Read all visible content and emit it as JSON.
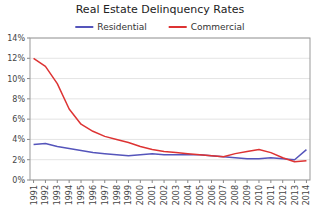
{
  "chart_data": {
    "type": "line",
    "title": "Real Estate Delinquency Rates",
    "x": [
      1991,
      1992,
      1993,
      1994,
      1995,
      1996,
      1997,
      1998,
      1999,
      2000,
      2001,
      2002,
      2003,
      2004,
      2005,
      2006,
      2007,
      2008,
      2009,
      2010,
      2011,
      2012,
      2013,
      2014
    ],
    "series": [
      {
        "name": "Residential",
        "color": "#5555bb",
        "values": [
          3.5,
          3.6,
          3.3,
          3.1,
          2.9,
          2.7,
          2.6,
          2.5,
          2.4,
          2.5,
          2.6,
          2.5,
          2.5,
          2.5,
          2.5,
          2.4,
          2.3,
          2.2,
          2.1,
          2.1,
          2.2,
          2.1,
          2.0,
          3.0
        ]
      },
      {
        "name": "Commercial",
        "color": "#dd3333",
        "values": [
          12.0,
          11.2,
          9.5,
          7.0,
          5.5,
          4.8,
          4.3,
          4.0,
          3.7,
          3.3,
          3.0,
          2.8,
          2.7,
          2.6,
          2.5,
          2.4,
          2.3,
          2.6,
          2.8,
          3.0,
          2.7,
          2.2,
          1.8,
          1.9
        ]
      }
    ],
    "xlim": [
      1990.7,
      2014.3
    ],
    "xticks": [
      1991,
      1992,
      1993,
      1994,
      1995,
      1996,
      1997,
      1998,
      1999,
      2000,
      2001,
      2002,
      2003,
      2004,
      2005,
      2006,
      2007,
      2008,
      2009,
      2010,
      2011,
      2012,
      2013,
      2014
    ],
    "ylim": [
      0,
      14
    ],
    "yticks": [
      {
        "value": 0,
        "label": "0%"
      },
      {
        "value": 2,
        "label": "2%"
      },
      {
        "value": 4,
        "label": "4%"
      },
      {
        "value": 6,
        "label": "6%"
      },
      {
        "value": 8,
        "label": "8%"
      },
      {
        "value": 10,
        "label": "10%"
      },
      {
        "value": 12,
        "label": "12%"
      },
      {
        "value": 14,
        "label": "14%"
      }
    ],
    "grid": true,
    "legend": "top"
  }
}
